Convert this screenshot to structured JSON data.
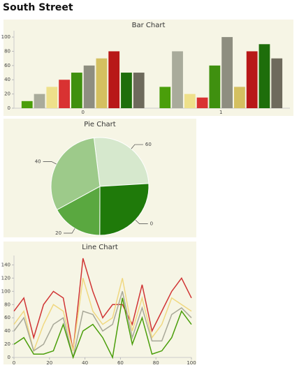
{
  "page_title": "South Street",
  "chart_data": [
    {
      "type": "bar",
      "title": "Bar Chart",
      "categories": [
        "0",
        "1"
      ],
      "ylim": [
        0,
        105
      ],
      "yticks": [
        0,
        20,
        40,
        60,
        80,
        100
      ],
      "series": [
        {
          "color": "#4a9e0a",
          "values": [
            10,
            30
          ]
        },
        {
          "color": "#a9ab9b",
          "values": [
            20,
            80
          ]
        },
        {
          "color": "#eee08a",
          "values": [
            30,
            20
          ]
        },
        {
          "color": "#d93232",
          "values": [
            40,
            15
          ]
        },
        {
          "color": "#3f900f",
          "values": [
            50,
            60
          ]
        },
        {
          "color": "#8e8e80",
          "values": [
            60,
            100
          ]
        },
        {
          "color": "#d4c060",
          "values": [
            70,
            30
          ]
        },
        {
          "color": "#b81818",
          "values": [
            80,
            80
          ]
        },
        {
          "color": "#1e6e0b",
          "values": [
            50,
            90
          ]
        },
        {
          "color": "#6e6a5c",
          "values": [
            50,
            70
          ]
        }
      ]
    },
    {
      "type": "pie",
      "title": "Pie Chart",
      "categories": [
        "60",
        "0",
        "20",
        "40"
      ],
      "values": [
        26,
        26,
        17,
        31
      ],
      "colors": [
        "#d6e8cd",
        "#1f7a0a",
        "#5aa840",
        "#9dca8a"
      ]
    },
    {
      "type": "line",
      "title": "Line Chart",
      "x": [
        0,
        5.56,
        11.11,
        16.67,
        22.22,
        27.78,
        33.33,
        38.89,
        44.44,
        50,
        55.56,
        61.11,
        66.67,
        72.22,
        77.78,
        83.33,
        88.89,
        94.44,
        100
      ],
      "xlim": [
        0,
        100
      ],
      "xticks": [
        0,
        20,
        40,
        60,
        80,
        100
      ],
      "ylim": [
        0,
        150
      ],
      "yticks": [
        0,
        20,
        40,
        60,
        80,
        100,
        120,
        140
      ],
      "series": [
        {
          "color": "#d03434",
          "values": [
            70,
            90,
            30,
            80,
            100,
            90,
            10,
            150,
            100,
            60,
            80,
            80,
            50,
            110,
            40,
            70,
            100,
            120,
            90
          ]
        },
        {
          "color": "#f0d880",
          "values": [
            50,
            70,
            10,
            50,
            80,
            70,
            10,
            120,
            70,
            50,
            60,
            120,
            40,
            90,
            30,
            50,
            90,
            80,
            70
          ]
        },
        {
          "color": "#a8a898",
          "values": [
            40,
            60,
            10,
            20,
            50,
            60,
            0,
            70,
            65,
            40,
            50,
            100,
            30,
            75,
            25,
            25,
            65,
            75,
            60
          ]
        },
        {
          "color": "#4a9e0a",
          "values": [
            20,
            30,
            5,
            5,
            10,
            50,
            0,
            40,
            50,
            30,
            0,
            90,
            20,
            60,
            5,
            10,
            30,
            70,
            50
          ]
        }
      ]
    }
  ]
}
